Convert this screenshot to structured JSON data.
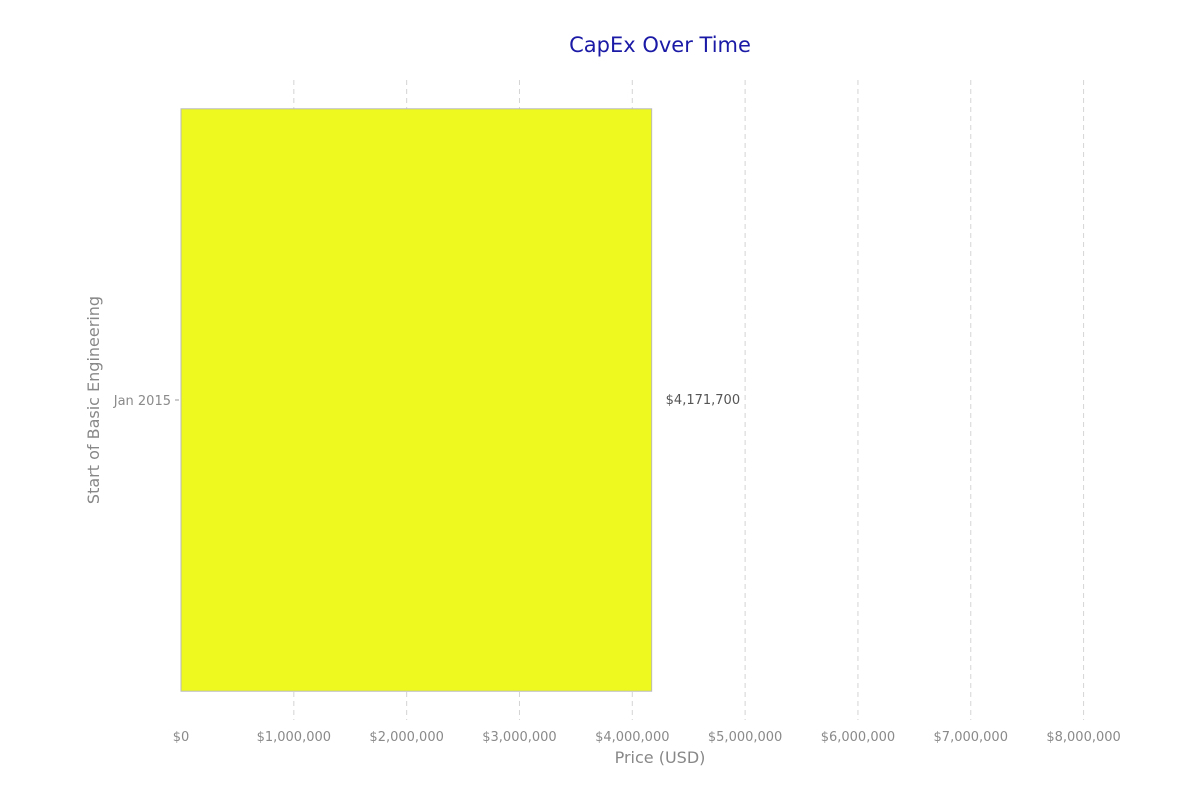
{
  "chart_data": {
    "type": "bar",
    "orientation": "horizontal",
    "title": "CapEx Over Time",
    "xlabel": "Price (USD)",
    "ylabel": "Start of Basic Engineering",
    "categories": [
      "Jan 2015"
    ],
    "values": [
      4171700
    ],
    "value_labels": [
      "$4,171,700"
    ],
    "xlim": [
      0,
      8500000
    ],
    "x_ticks": [
      0,
      1000000,
      2000000,
      3000000,
      4000000,
      5000000,
      6000000,
      7000000,
      8000000
    ],
    "x_tick_labels": [
      "$0",
      "$1,000,000",
      "$2,000,000",
      "$3,000,000",
      "$4,000,000",
      "$5,000,000",
      "$6,000,000",
      "$7,000,000",
      "$8,000,000"
    ],
    "grid": true,
    "bar_color": "#eef91f",
    "title_color": "#1a1aa6"
  }
}
